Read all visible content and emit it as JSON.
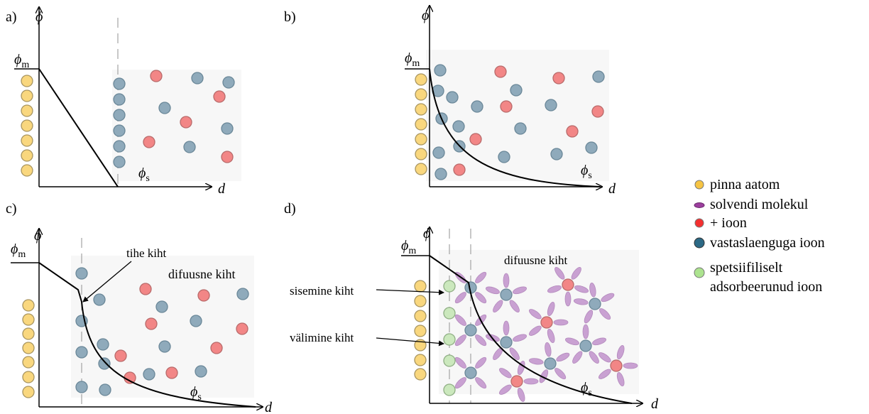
{
  "panels": [
    {
      "label": "a)",
      "y_axis": "ϕ",
      "x_axis": "d",
      "phi_m": "ϕ",
      "phi_m_sub": "m",
      "phi_s": "ϕ",
      "phi_s_sub": "s"
    },
    {
      "label": "b)",
      "y_axis": "ϕ",
      "x_axis": "d",
      "phi_m": "ϕ",
      "phi_m_sub": "m",
      "phi_s": "ϕ",
      "phi_s_sub": "s"
    },
    {
      "label": "c)",
      "y_axis": "ϕ",
      "x_axis": "d",
      "phi_m": "ϕ",
      "phi_m_sub": "m",
      "phi_s": "ϕ",
      "phi_s_sub": "s"
    },
    {
      "label": "d)",
      "y_axis": "ϕ",
      "x_axis": "d",
      "phi_m": "ϕ",
      "phi_m_sub": "m",
      "phi_s": "ϕ",
      "phi_s_sub": "s"
    }
  ],
  "annotations": {
    "tihe_kiht": "tihe kiht",
    "difuusne_c": "difuusne kiht",
    "difuusne_d": "difuusne kiht",
    "sisemine": "sisemine kiht",
    "valimine": "välimine kiht"
  },
  "legend": [
    {
      "label": "pinna aatom"
    },
    {
      "label": "solvendi molekul"
    },
    {
      "label": "+ ioon"
    },
    {
      "label": "vastaslaenguga ioon"
    },
    {
      "label": [
        "spetsiifiliselt",
        "adsorbeerunud ioon"
      ]
    }
  ]
}
